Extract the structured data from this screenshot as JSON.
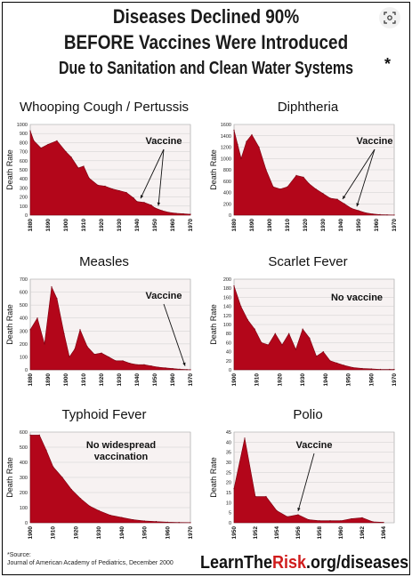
{
  "title": {
    "line1": "Diseases Declined 90%",
    "line2": "BEFORE Vaccines Were Introduced",
    "line3": "Due to Sanitation and Clean Water Systems",
    "asterisk": "*"
  },
  "footer": {
    "source_label": "*Source:",
    "source_text": "Journal of American Academy of Pediatrics, December 2000",
    "brand_prefix": "LearnThe",
    "brand_highlight": "Risk",
    "brand_suffix": ".org/diseases"
  },
  "colors": {
    "fill": "#b3061a",
    "fill_light": "#d9606c",
    "text": "#111111"
  },
  "icons": {
    "lens": "lens-search-icon"
  },
  "chart_data": [
    {
      "type": "area",
      "title": "Whooping Cough / Pertussis",
      "ylabel": "Death Rate",
      "ylim": [
        0,
        1000
      ],
      "yticks": [
        0,
        100,
        200,
        300,
        400,
        500,
        600,
        700,
        800,
        900,
        1000
      ],
      "xlim": [
        1880,
        1970
      ],
      "xticks": [
        1880,
        1890,
        1900,
        1910,
        1920,
        1930,
        1940,
        1950,
        1960,
        1970
      ],
      "x": [
        1880,
        1882,
        1886,
        1890,
        1895,
        1900,
        1903,
        1907,
        1910,
        1913,
        1918,
        1922,
        1926,
        1930,
        1934,
        1938,
        1940,
        1944,
        1948,
        1950,
        1954,
        1958,
        1962,
        1966,
        1970
      ],
      "values": [
        930,
        820,
        740,
        780,
        820,
        700,
        640,
        520,
        540,
        410,
        330,
        320,
        290,
        270,
        250,
        190,
        150,
        140,
        110,
        80,
        50,
        30,
        20,
        15,
        10
      ],
      "annotation": "Vaccine",
      "arrows_to": [
        1942,
        1952
      ]
    },
    {
      "type": "area",
      "title": "Diphtheria",
      "ylabel": "Death Rate",
      "ylim": [
        0,
        1600
      ],
      "yticks": [
        0,
        200,
        400,
        600,
        800,
        1000,
        1200,
        1400,
        1600
      ],
      "xlim": [
        1880,
        1970
      ],
      "xticks": [
        1880,
        1890,
        1900,
        1910,
        1920,
        1930,
        1940,
        1950,
        1960,
        1970
      ],
      "x": [
        1880,
        1882,
        1884,
        1887,
        1890,
        1894,
        1898,
        1902,
        1906,
        1910,
        1915,
        1919,
        1922,
        1926,
        1930,
        1934,
        1938,
        1942,
        1946,
        1950,
        1954,
        1958,
        1962,
        1966,
        1970
      ],
      "values": [
        1500,
        1250,
        1000,
        1300,
        1420,
        1200,
        800,
        500,
        460,
        500,
        700,
        670,
        560,
        460,
        380,
        300,
        280,
        200,
        120,
        80,
        40,
        20,
        10,
        5,
        2
      ],
      "annotation": "Vaccine",
      "arrows_to": [
        1941,
        1949
      ]
    },
    {
      "type": "area",
      "title": "Measles",
      "ylabel": "Death Rate",
      "ylim": [
        0,
        700
      ],
      "yticks": [
        0,
        100,
        200,
        300,
        400,
        500,
        600,
        700
      ],
      "xlim": [
        1880,
        1970
      ],
      "xticks": [
        1880,
        1890,
        1900,
        1910,
        1920,
        1930,
        1940,
        1950,
        1960,
        1970
      ],
      "x": [
        1880,
        1884,
        1888,
        1892,
        1895,
        1899,
        1902,
        1905,
        1908,
        1912,
        1916,
        1920,
        1924,
        1928,
        1932,
        1936,
        1940,
        1944,
        1948,
        1952,
        1956,
        1960,
        1964,
        1968,
        1970
      ],
      "values": [
        310,
        400,
        200,
        640,
        550,
        280,
        100,
        160,
        310,
        180,
        120,
        130,
        100,
        70,
        70,
        50,
        40,
        40,
        30,
        20,
        15,
        10,
        5,
        2,
        1
      ],
      "annotation": "Vaccine",
      "arrows_to": [
        1967
      ]
    },
    {
      "type": "area",
      "title": "Scarlet Fever",
      "ylabel": "Death Rate",
      "ylim": [
        0,
        200
      ],
      "yticks": [
        0,
        20,
        40,
        60,
        80,
        100,
        120,
        140,
        160,
        180,
        200
      ],
      "xlim": [
        1900,
        1970
      ],
      "xticks": [
        1900,
        1910,
        1920,
        1930,
        1940,
        1950,
        1960,
        1970
      ],
      "x": [
        1900,
        1903,
        1906,
        1909,
        1912,
        1915,
        1918,
        1921,
        1924,
        1927,
        1930,
        1933,
        1936,
        1939,
        1942,
        1945,
        1948,
        1952,
        1956,
        1960,
        1964,
        1968,
        1970
      ],
      "values": [
        185,
        140,
        110,
        90,
        60,
        55,
        80,
        55,
        80,
        45,
        90,
        70,
        30,
        40,
        20,
        15,
        10,
        5,
        3,
        2,
        1,
        1,
        1
      ],
      "annotation": "No vaccine"
    },
    {
      "type": "area",
      "title": "Typhoid Fever",
      "ylabel": "Death Rate",
      "ylim": [
        0,
        600
      ],
      "yticks": [
        0,
        100,
        200,
        300,
        400,
        500,
        600
      ],
      "xlim": [
        1900,
        1970
      ],
      "xticks": [
        1900,
        1910,
        1920,
        1930,
        1940,
        1950,
        1960,
        1970
      ],
      "x": [
        1900,
        1904,
        1907,
        1910,
        1914,
        1918,
        1922,
        1926,
        1930,
        1935,
        1940,
        1945,
        1950,
        1955,
        1960,
        1965,
        1970
      ],
      "values": [
        580,
        580,
        480,
        370,
        300,
        220,
        160,
        110,
        80,
        50,
        35,
        20,
        12,
        8,
        4,
        2,
        1
      ],
      "annotation": "No widespread vaccination"
    },
    {
      "type": "area",
      "title": "Polio",
      "ylabel": "Death Rate",
      "ylim": [
        0,
        45
      ],
      "yticks": [
        0,
        5,
        10,
        15,
        20,
        25,
        30,
        35,
        40,
        45
      ],
      "xlim": [
        1950,
        1965
      ],
      "xticks": [
        1950,
        1952,
        1954,
        1956,
        1958,
        1960,
        1962,
        1964
      ],
      "x": [
        1950,
        1951,
        1952,
        1953,
        1954,
        1955,
        1956,
        1957,
        1958,
        1959,
        1960,
        1961,
        1962,
        1963,
        1964
      ],
      "values": [
        17,
        42,
        13,
        13,
        6,
        3,
        4,
        1.5,
        1,
        1,
        1,
        2,
        2.5,
        0.5,
        0.2
      ],
      "annotation": "Vaccine",
      "arrows_to": [
        1956
      ]
    }
  ]
}
